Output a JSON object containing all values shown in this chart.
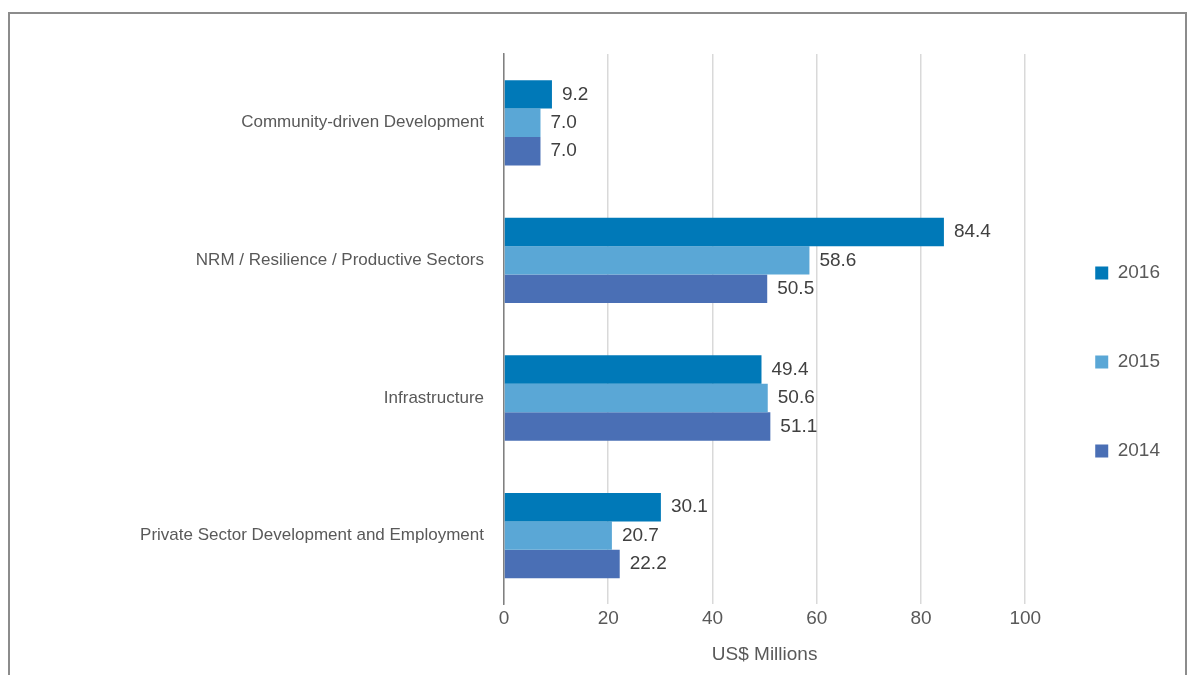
{
  "chart_data": {
    "type": "bar",
    "orientation": "horizontal",
    "xlabel": "US$ Millions",
    "categories": [
      "Community-driven Development",
      "NRM / Resilience / Productive Sectors",
      "Infrastructure",
      "Private Sector Development and Employment"
    ],
    "series": [
      {
        "name": "2016",
        "color": "#0079b8",
        "values": [
          9.2,
          84.4,
          49.4,
          30.1
        ],
        "value_labels": [
          "9.2",
          "84.4",
          "49.4",
          "30.1"
        ]
      },
      {
        "name": "2015",
        "color": "#5aa7d6",
        "values": [
          7.0,
          58.6,
          50.6,
          20.7
        ],
        "value_labels": [
          "7.0",
          "58.6",
          "50.6",
          "20.7"
        ]
      },
      {
        "name": "2014",
        "color": "#4a6fb5",
        "values": [
          7.0,
          50.5,
          51.1,
          22.2
        ],
        "value_labels": [
          "7.0",
          "50.5",
          "51.1",
          "22.2"
        ]
      }
    ],
    "xlim": [
      0,
      100
    ],
    "xticks": [
      0,
      20,
      40,
      60,
      80,
      100
    ],
    "grid": "x",
    "legend": "right"
  }
}
